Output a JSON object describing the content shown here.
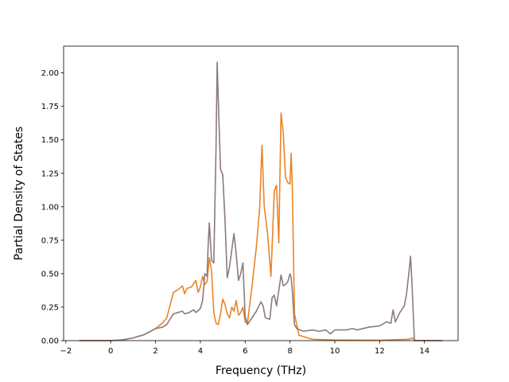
{
  "chart_data": {
    "type": "line",
    "xlabel": "Frequency (THz)",
    "ylabel": "Partial Density of States",
    "xlim": [
      -2.1,
      15.5
    ],
    "ylim": [
      0.0,
      2.2
    ],
    "x_ticks": [
      "−2",
      "0",
      "2",
      "4",
      "6",
      "8",
      "10",
      "12",
      "14"
    ],
    "x_tick_values": [
      -2,
      0,
      2,
      4,
      6,
      8,
      10,
      12,
      14
    ],
    "y_ticks": [
      "0.00",
      "0.25",
      "0.50",
      "0.75",
      "1.00",
      "1.25",
      "1.50",
      "1.75",
      "2.00"
    ],
    "y_tick_values": [
      0,
      0.25,
      0.5,
      0.75,
      1.0,
      1.25,
      1.5,
      1.75,
      2.0
    ],
    "grid": false,
    "series": [
      {
        "color": "#e98427",
        "points": [
          [
            -1.4,
            0.0
          ],
          [
            0.0,
            0.0
          ],
          [
            0.5,
            0.005
          ],
          [
            1.0,
            0.02
          ],
          [
            1.5,
            0.045
          ],
          [
            2.0,
            0.09
          ],
          [
            2.3,
            0.13
          ],
          [
            2.5,
            0.17
          ],
          [
            2.8,
            0.36
          ],
          [
            3.0,
            0.38
          ],
          [
            3.2,
            0.41
          ],
          [
            3.3,
            0.35
          ],
          [
            3.4,
            0.39
          ],
          [
            3.6,
            0.4
          ],
          [
            3.8,
            0.45
          ],
          [
            3.9,
            0.36
          ],
          [
            4.0,
            0.4
          ],
          [
            4.1,
            0.48
          ],
          [
            4.2,
            0.42
          ],
          [
            4.3,
            0.44
          ],
          [
            4.4,
            0.62
          ],
          [
            4.5,
            0.52
          ],
          [
            4.6,
            0.21
          ],
          [
            4.7,
            0.13
          ],
          [
            4.8,
            0.12
          ],
          [
            4.9,
            0.2
          ],
          [
            5.0,
            0.31
          ],
          [
            5.1,
            0.27
          ],
          [
            5.2,
            0.2
          ],
          [
            5.3,
            0.17
          ],
          [
            5.4,
            0.25
          ],
          [
            5.5,
            0.22
          ],
          [
            5.6,
            0.3
          ],
          [
            5.7,
            0.19
          ],
          [
            5.8,
            0.21
          ],
          [
            5.9,
            0.25
          ],
          [
            6.0,
            0.14
          ],
          [
            6.1,
            0.13
          ],
          [
            6.3,
            0.4
          ],
          [
            6.5,
            0.7
          ],
          [
            6.65,
            1.0
          ],
          [
            6.75,
            1.46
          ],
          [
            6.85,
            1.0
          ],
          [
            7.0,
            0.8
          ],
          [
            7.15,
            0.48
          ],
          [
            7.3,
            1.12
          ],
          [
            7.4,
            1.16
          ],
          [
            7.5,
            0.73
          ],
          [
            7.6,
            1.7
          ],
          [
            7.7,
            1.55
          ],
          [
            7.8,
            1.22
          ],
          [
            7.9,
            1.18
          ],
          [
            8.0,
            1.17
          ],
          [
            8.05,
            1.4
          ],
          [
            8.1,
            1.18
          ],
          [
            8.2,
            0.2
          ],
          [
            8.4,
            0.04
          ],
          [
            9.0,
            0.01
          ],
          [
            10.0,
            0.005
          ],
          [
            12.0,
            0.003
          ],
          [
            13.3,
            0.01
          ],
          [
            13.45,
            0.02
          ],
          [
            13.6,
            0.0
          ],
          [
            14.8,
            0.0
          ]
        ]
      },
      {
        "color": "#8b7a7e",
        "points": [
          [
            -1.4,
            0.0
          ],
          [
            0.0,
            0.0
          ],
          [
            0.5,
            0.005
          ],
          [
            1.0,
            0.02
          ],
          [
            1.5,
            0.045
          ],
          [
            2.0,
            0.09
          ],
          [
            2.3,
            0.1
          ],
          [
            2.5,
            0.12
          ],
          [
            2.8,
            0.2
          ],
          [
            3.0,
            0.21
          ],
          [
            3.2,
            0.22
          ],
          [
            3.3,
            0.2
          ],
          [
            3.5,
            0.21
          ],
          [
            3.7,
            0.23
          ],
          [
            3.8,
            0.21
          ],
          [
            4.0,
            0.24
          ],
          [
            4.1,
            0.3
          ],
          [
            4.2,
            0.5
          ],
          [
            4.3,
            0.48
          ],
          [
            4.35,
            0.72
          ],
          [
            4.4,
            0.88
          ],
          [
            4.5,
            0.6
          ],
          [
            4.6,
            0.58
          ],
          [
            4.7,
            1.45
          ],
          [
            4.75,
            2.08
          ],
          [
            4.8,
            1.8
          ],
          [
            4.9,
            1.28
          ],
          [
            5.0,
            1.24
          ],
          [
            5.1,
            0.9
          ],
          [
            5.2,
            0.47
          ],
          [
            5.3,
            0.55
          ],
          [
            5.5,
            0.8
          ],
          [
            5.6,
            0.65
          ],
          [
            5.7,
            0.45
          ],
          [
            5.8,
            0.5
          ],
          [
            5.9,
            0.58
          ],
          [
            6.0,
            0.18
          ],
          [
            6.1,
            0.12
          ],
          [
            6.3,
            0.17
          ],
          [
            6.5,
            0.22
          ],
          [
            6.7,
            0.29
          ],
          [
            6.8,
            0.26
          ],
          [
            6.9,
            0.17
          ],
          [
            7.1,
            0.16
          ],
          [
            7.2,
            0.32
          ],
          [
            7.3,
            0.34
          ],
          [
            7.4,
            0.26
          ],
          [
            7.6,
            0.49
          ],
          [
            7.7,
            0.41
          ],
          [
            7.8,
            0.42
          ],
          [
            7.9,
            0.44
          ],
          [
            8.0,
            0.5
          ],
          [
            8.05,
            0.47
          ],
          [
            8.1,
            0.38
          ],
          [
            8.2,
            0.12
          ],
          [
            8.3,
            0.09
          ],
          [
            8.6,
            0.07
          ],
          [
            9.0,
            0.08
          ],
          [
            9.3,
            0.07
          ],
          [
            9.6,
            0.08
          ],
          [
            9.8,
            0.05
          ],
          [
            10.0,
            0.08
          ],
          [
            10.5,
            0.08
          ],
          [
            10.8,
            0.09
          ],
          [
            11.0,
            0.08
          ],
          [
            11.5,
            0.1
          ],
          [
            12.0,
            0.11
          ],
          [
            12.3,
            0.14
          ],
          [
            12.5,
            0.13
          ],
          [
            12.6,
            0.23
          ],
          [
            12.7,
            0.14
          ],
          [
            12.9,
            0.21
          ],
          [
            13.1,
            0.26
          ],
          [
            13.2,
            0.35
          ],
          [
            13.3,
            0.5
          ],
          [
            13.38,
            0.63
          ],
          [
            13.45,
            0.4
          ],
          [
            13.55,
            0.0
          ],
          [
            14.8,
            0.0
          ]
        ]
      }
    ]
  }
}
